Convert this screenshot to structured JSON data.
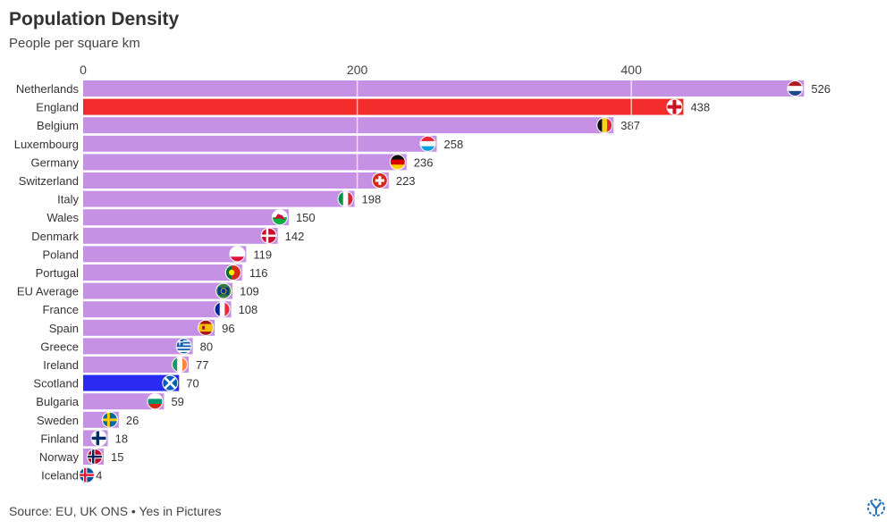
{
  "title": "Population Density",
  "subtitle": "People per square km",
  "source": "Source: EU, UK ONS • Yes in Pictures",
  "colors": {
    "default_bar": "#c691e4",
    "highlight_england": "#f22b2b",
    "highlight_scotland": "#2a2af0",
    "label_text": "#333333",
    "gridline": "#ffffff"
  },
  "chart_data": {
    "type": "bar",
    "orientation": "horizontal",
    "title": "Population Density",
    "subtitle": "People per square km",
    "xlabel": "",
    "ylabel": "",
    "xlim": [
      0,
      526
    ],
    "x_ticks": [
      0,
      200,
      400
    ],
    "grid": true,
    "legend": "none",
    "categories": [
      "Netherlands",
      "England",
      "Belgium",
      "Luxembourg",
      "Germany",
      "Switzerland",
      "Italy",
      "Wales",
      "Denmark",
      "Poland",
      "Portugal",
      "EU Average",
      "France",
      "Spain",
      "Greece",
      "Ireland",
      "Scotland",
      "Bulgaria",
      "Sweden",
      "Finland",
      "Norway",
      "Iceland"
    ],
    "values": [
      526,
      438,
      387,
      258,
      236,
      223,
      198,
      150,
      142,
      119,
      116,
      109,
      108,
      96,
      80,
      77,
      70,
      59,
      26,
      18,
      15,
      4
    ],
    "bar_colors": {
      "England": "#f22b2b",
      "Scotland": "#2a2af0"
    },
    "flag_icons": [
      "netherlands-flag-icon",
      "england-flag-icon",
      "belgium-flag-icon",
      "luxembourg-flag-icon",
      "germany-flag-icon",
      "switzerland-flag-icon",
      "italy-flag-icon",
      "wales-flag-icon",
      "denmark-flag-icon",
      "poland-flag-icon",
      "portugal-flag-icon",
      "eu-flag-icon",
      "france-flag-icon",
      "spain-flag-icon",
      "greece-flag-icon",
      "ireland-flag-icon",
      "scotland-flag-icon",
      "bulgaria-flag-icon",
      "sweden-flag-icon",
      "finland-flag-icon",
      "norway-flag-icon",
      "iceland-flag-icon"
    ]
  }
}
